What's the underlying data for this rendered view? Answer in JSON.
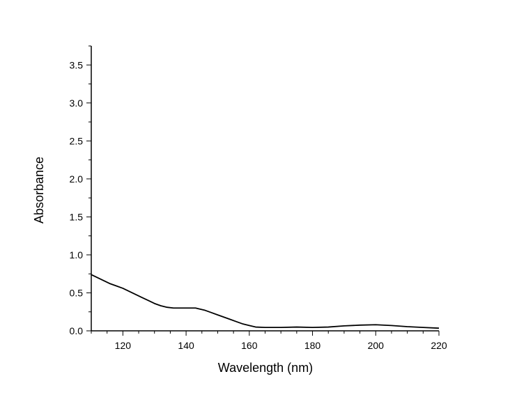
{
  "chart_data": {
    "type": "line",
    "title": "",
    "xlabel": "Wavelength (nm)",
    "ylabel": "Absorbance",
    "xlim": [
      110,
      220
    ],
    "ylim": [
      0,
      3.75
    ],
    "x_ticks": [
      120,
      140,
      160,
      180,
      200,
      220
    ],
    "x_tick_labels": [
      "120",
      "140",
      "160",
      "180",
      "200",
      "220"
    ],
    "x_minor_step": 5,
    "y_ticks": [
      0,
      0.5,
      1.0,
      1.5,
      2.0,
      2.5,
      3.0,
      3.5
    ],
    "y_tick_labels": [
      "0.0",
      "0.5",
      "1.0",
      "1.5",
      "2.0",
      "2.5",
      "3.0",
      "3.5"
    ],
    "y_minor_step": 0.25,
    "grid": false,
    "line_color": "#000000",
    "series": [
      {
        "x": [
          110,
          112,
          114,
          116,
          118,
          120,
          122,
          124,
          126,
          128,
          130,
          132,
          134,
          136,
          138,
          140,
          142,
          143,
          144,
          146,
          148,
          150,
          152,
          154,
          156,
          158,
          160,
          162,
          165,
          170,
          175,
          180,
          185,
          190,
          195,
          200,
          205,
          210,
          215,
          220
        ],
        "y": [
          0.74,
          0.7,
          0.66,
          0.62,
          0.59,
          0.56,
          0.52,
          0.48,
          0.44,
          0.4,
          0.36,
          0.33,
          0.31,
          0.3,
          0.3,
          0.3,
          0.3,
          0.3,
          0.29,
          0.27,
          0.24,
          0.21,
          0.18,
          0.15,
          0.12,
          0.09,
          0.07,
          0.05,
          0.045,
          0.045,
          0.05,
          0.045,
          0.05,
          0.065,
          0.075,
          0.08,
          0.07,
          0.055,
          0.045,
          0.035
        ]
      }
    ]
  }
}
